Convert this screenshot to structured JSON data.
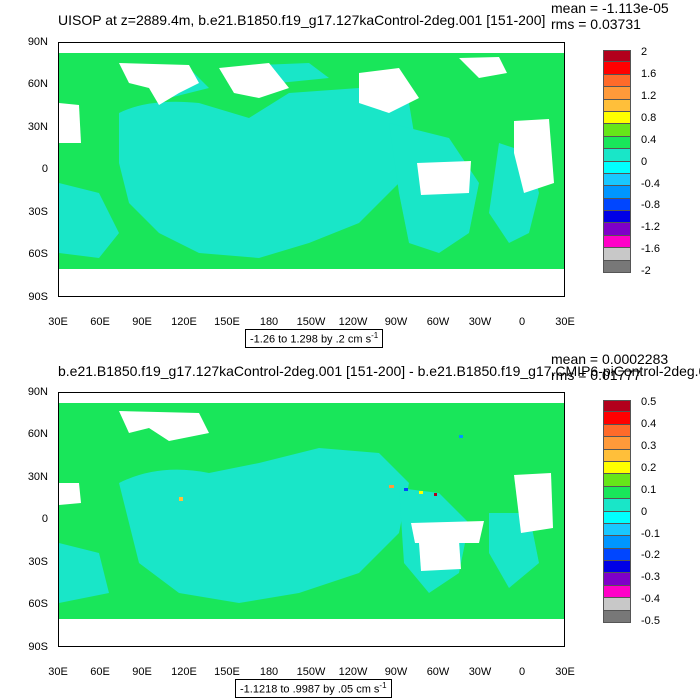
{
  "panels": [
    {
      "title": "UISOP at z=2889.4m, b.e21.B1850.f19_g17.127kaControl-2deg.001 [151-200]",
      "mean": "mean = -1.113e-05",
      "rms": "rms = 0.03731",
      "range_text": "-1.26 to 1.298 by .2 cm s",
      "range_sup": "-1",
      "lat_labels": [
        "90N",
        "60N",
        "30N",
        "0",
        "30S",
        "60S",
        "90S"
      ],
      "lon_labels": [
        "30E",
        "60E",
        "90E",
        "120E",
        "150E",
        "180",
        "150W",
        "120W",
        "90W",
        "60W",
        "30W",
        "0",
        "30E"
      ],
      "colorbar_labels": [
        "2",
        "1.6",
        "1.2",
        "0.8",
        "0.4",
        "0",
        "-0.4",
        "-0.8",
        "-1.2",
        "-1.6",
        "-2"
      ],
      "colorbar_colors": [
        "#b2001c",
        "#ff0000",
        "#ff6a2a",
        "#ff9a3a",
        "#ffbf3a",
        "#ffff00",
        "#66e619",
        "#19e65a",
        "#19e6c8",
        "#00ffff",
        "#19c8ff",
        "#0096ff",
        "#0046ff",
        "#0000e6",
        "#7f00c8",
        "#ff00c8",
        "#c8c8c8",
        "#787878"
      ]
    },
    {
      "title": "b.e21.B1850.f19_g17.127kaControl-2deg.001 [151-200] - b.e21.B1850.f19_g17.CMIP6-piControl-2deg.0",
      "mean": "mean = 0.0002283",
      "rms": "rms = 0.01777",
      "range_text": "-1.1218 to .9987 by .05 cm s",
      "range_sup": "-1",
      "lat_labels": [
        "90N",
        "60N",
        "30N",
        "0",
        "30S",
        "60S",
        "90S"
      ],
      "lon_labels": [
        "30E",
        "60E",
        "90E",
        "120E",
        "150E",
        "180",
        "150W",
        "120W",
        "90W",
        "60W",
        "30W",
        "0",
        "30E"
      ],
      "colorbar_labels": [
        "0.5",
        "0.4",
        "0.3",
        "0.2",
        "0.1",
        "0",
        "-0.1",
        "-0.2",
        "-0.3",
        "-0.4",
        "-0.5"
      ],
      "colorbar_colors": [
        "#b2001c",
        "#ff0000",
        "#ff6a2a",
        "#ff9a3a",
        "#ffbf3a",
        "#ffff00",
        "#66e619",
        "#19e65a",
        "#19e6c8",
        "#00ffff",
        "#19c8ff",
        "#0096ff",
        "#0046ff",
        "#0000e6",
        "#7f00c8",
        "#ff00c8",
        "#c8c8c8",
        "#787878"
      ]
    }
  ],
  "chart_data": [
    {
      "type": "heatmap",
      "title": "UISOP at z=2889.4m, b.e21.B1850.f19_g17.127kaControl-2deg.001 [151-200]",
      "xlim": [
        "30E",
        "30E"
      ],
      "ylim": [
        "90S",
        "90N"
      ],
      "value_range": [
        -1.26,
        1.298
      ],
      "contour_interval": 0.2,
      "units": "cm s-1",
      "mean": -1.113e-05,
      "rms": 0.03731,
      "dominant_colors": [
        "#19e65a",
        "#19e6c8"
      ]
    },
    {
      "type": "heatmap",
      "title": "b.e21.B1850.f19_g17.127kaControl-2deg.001 [151-200] - b.e21.B1850.f19_g17.CMIP6-piControl-2deg.0",
      "xlim": [
        "30E",
        "30E"
      ],
      "ylim": [
        "90S",
        "90N"
      ],
      "value_range": [
        -1.1218,
        0.9987
      ],
      "contour_interval": 0.05,
      "units": "cm s-1",
      "mean": 0.0002283,
      "rms": 0.01777,
      "dominant_colors": [
        "#19e65a",
        "#19e6c8"
      ]
    }
  ]
}
